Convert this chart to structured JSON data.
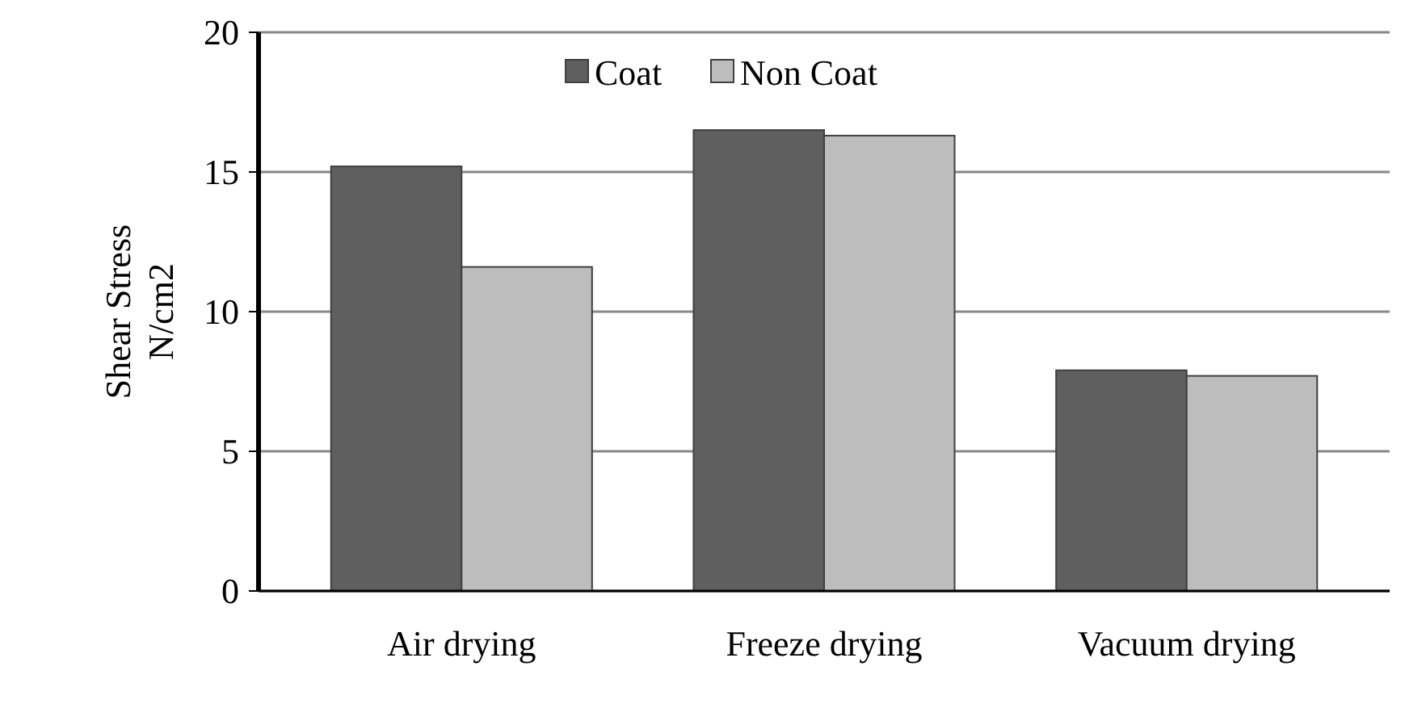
{
  "chart_data": {
    "type": "bar",
    "ylabel": "Shear Stress N/cm2",
    "categories": [
      "Air drying",
      "Freeze drying",
      "Vacuum drying"
    ],
    "series": [
      {
        "name": "Coat",
        "color": "#5f5f5f",
        "values": [
          15.2,
          16.5,
          7.9
        ]
      },
      {
        "name": "Non Coat",
        "color": "#bdbdbd",
        "values": [
          11.6,
          16.3,
          7.7
        ]
      }
    ],
    "ylim": [
      0,
      20
    ],
    "yticks": [
      0,
      5,
      10,
      15,
      20
    ],
    "grid": "y",
    "legend": "top"
  }
}
